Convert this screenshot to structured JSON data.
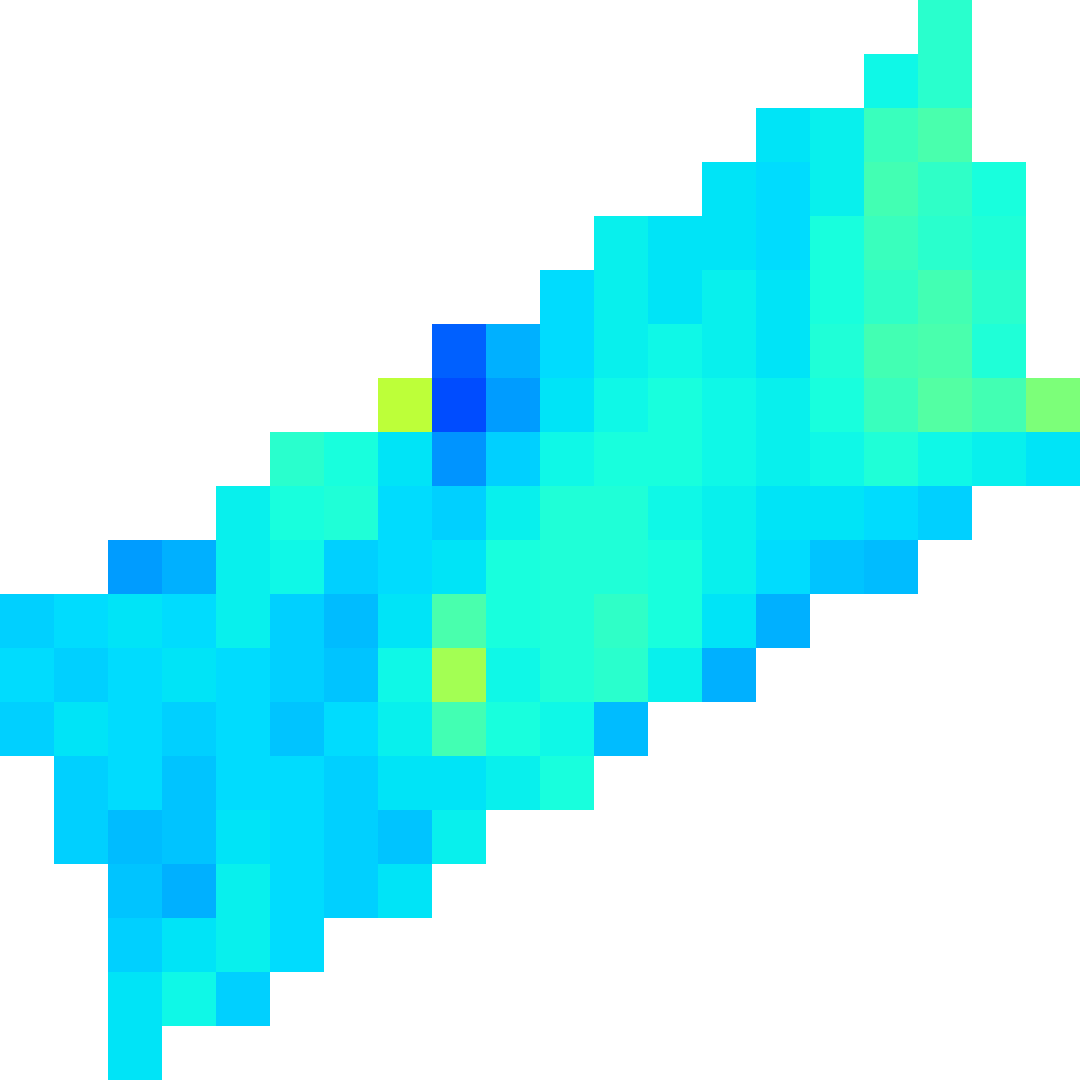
{
  "chart_data": {
    "type": "heatmap",
    "tick_labels": false,
    "clim": [
      0,
      1
    ],
    "cells": [
      [
        null,
        null,
        null,
        null,
        null,
        null,
        null,
        null,
        null,
        null,
        null,
        null,
        null,
        null,
        null,
        null,
        null,
        0.4,
        null,
        null
      ],
      [
        null,
        null,
        null,
        null,
        null,
        null,
        null,
        null,
        null,
        null,
        null,
        null,
        null,
        null,
        null,
        null,
        0.37,
        0.4,
        null,
        null
      ],
      [
        null,
        null,
        null,
        null,
        null,
        null,
        null,
        null,
        null,
        null,
        null,
        null,
        null,
        null,
        0.35,
        0.36,
        0.42,
        0.44,
        null,
        null
      ],
      [
        null,
        null,
        null,
        null,
        null,
        null,
        null,
        null,
        null,
        null,
        null,
        null,
        null,
        0.35,
        0.34,
        0.36,
        0.43,
        0.41,
        0.38,
        null
      ],
      [
        null,
        null,
        null,
        null,
        null,
        null,
        null,
        null,
        null,
        null,
        null,
        0.36,
        0.35,
        0.35,
        0.34,
        0.38,
        0.42,
        0.4,
        0.39,
        null
      ],
      [
        null,
        null,
        null,
        null,
        null,
        null,
        null,
        null,
        null,
        null,
        0.34,
        0.36,
        0.35,
        0.36,
        0.35,
        0.38,
        0.41,
        0.43,
        0.4,
        null
      ],
      [
        null,
        null,
        null,
        null,
        null,
        null,
        null,
        null,
        0.22,
        0.3,
        0.34,
        0.36,
        0.37,
        0.36,
        0.35,
        0.39,
        0.43,
        0.44,
        0.39,
        null
      ],
      [
        null,
        null,
        null,
        null,
        null,
        null,
        null,
        0.58,
        0.2,
        0.28,
        0.35,
        0.37,
        0.38,
        0.37,
        0.36,
        0.38,
        0.42,
        0.45,
        0.43,
        0.5
      ],
      [
        null,
        null,
        null,
        null,
        null,
        0.4,
        0.38,
        0.35,
        0.27,
        0.33,
        0.37,
        0.38,
        0.38,
        0.37,
        0.36,
        0.37,
        0.39,
        0.37,
        0.36,
        0.35
      ],
      [
        null,
        null,
        null,
        null,
        0.36,
        0.38,
        0.39,
        0.34,
        0.33,
        0.36,
        0.39,
        0.39,
        0.37,
        0.36,
        0.35,
        0.35,
        0.34,
        0.33,
        null,
        null
      ],
      [
        null,
        null,
        0.28,
        0.3,
        0.36,
        0.37,
        0.33,
        0.34,
        0.35,
        0.38,
        0.39,
        0.39,
        0.38,
        0.36,
        0.34,
        0.32,
        0.31,
        null,
        null,
        null
      ],
      [
        0.33,
        0.34,
        0.35,
        0.34,
        0.36,
        0.33,
        0.31,
        0.35,
        0.44,
        0.38,
        0.39,
        0.41,
        0.38,
        0.35,
        0.3,
        null,
        null,
        null,
        null,
        null
      ],
      [
        0.34,
        0.33,
        0.34,
        0.35,
        0.34,
        0.33,
        0.32,
        0.37,
        0.55,
        0.37,
        0.39,
        0.4,
        0.36,
        0.3,
        null,
        null,
        null,
        null,
        null,
        null
      ],
      [
        0.33,
        0.35,
        0.34,
        0.33,
        0.34,
        0.32,
        0.34,
        0.36,
        0.43,
        0.38,
        0.37,
        0.31,
        null,
        null,
        null,
        null,
        null,
        null,
        null,
        null
      ],
      [
        null,
        0.33,
        0.34,
        0.32,
        0.34,
        0.34,
        0.33,
        0.35,
        0.35,
        0.36,
        0.38,
        null,
        null,
        null,
        null,
        null,
        null,
        null,
        null,
        null
      ],
      [
        null,
        0.33,
        0.31,
        0.32,
        0.35,
        0.34,
        0.33,
        0.32,
        0.36,
        null,
        null,
        null,
        null,
        null,
        null,
        null,
        null,
        null,
        null,
        null
      ],
      [
        null,
        null,
        0.32,
        0.3,
        0.36,
        0.34,
        0.33,
        0.35,
        null,
        null,
        null,
        null,
        null,
        null,
        null,
        null,
        null,
        null,
        null,
        null
      ],
      [
        null,
        null,
        0.33,
        0.35,
        0.36,
        0.34,
        null,
        null,
        null,
        null,
        null,
        null,
        null,
        null,
        null,
        null,
        null,
        null,
        null,
        null
      ],
      [
        null,
        null,
        0.35,
        0.37,
        0.33,
        null,
        null,
        null,
        null,
        null,
        null,
        null,
        null,
        null,
        null,
        null,
        null,
        null,
        null,
        null
      ],
      [
        null,
        null,
        0.35,
        null,
        null,
        null,
        null,
        null,
        null,
        null,
        null,
        null,
        null,
        null,
        null,
        null,
        null,
        null,
        null,
        null
      ]
    ]
  }
}
